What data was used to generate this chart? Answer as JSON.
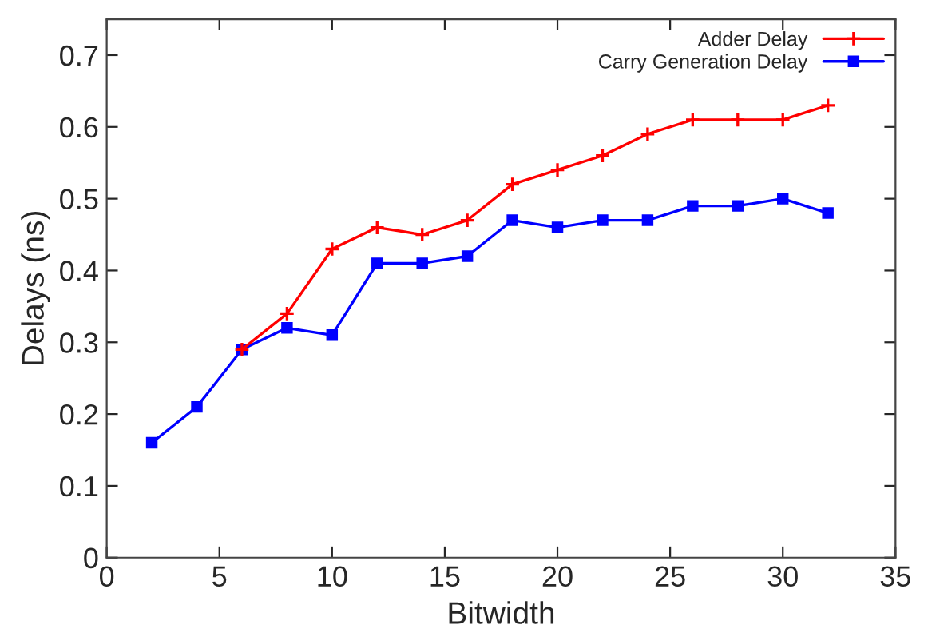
{
  "chart_data": {
    "type": "line",
    "xlabel": "Bitwidth",
    "ylabel": "Delays (ns)",
    "x": [
      2,
      4,
      6,
      8,
      10,
      12,
      14,
      16,
      18,
      20,
      22,
      24,
      26,
      28,
      30,
      32
    ],
    "series": [
      {
        "name": "Adder Delay",
        "color": "#ff0000",
        "marker": "cross",
        "values": [
          null,
          null,
          0.29,
          0.34,
          0.43,
          0.46,
          0.45,
          0.47,
          0.52,
          0.54,
          0.56,
          0.59,
          0.61,
          0.61,
          0.61,
          0.63
        ]
      },
      {
        "name": "Carry Generation Delay",
        "color": "#0000ff",
        "marker": "square",
        "values": [
          0.16,
          0.21,
          0.29,
          0.32,
          0.31,
          0.41,
          0.41,
          0.42,
          0.47,
          0.46,
          0.47,
          0.47,
          0.49,
          0.49,
          0.5,
          0.48
        ]
      }
    ],
    "xlim": [
      0,
      35
    ],
    "xticks": [
      0,
      5,
      10,
      15,
      20,
      25,
      30,
      35
    ],
    "ylim": [
      0,
      0.75
    ],
    "yticks": [
      0,
      0.1,
      0.2,
      0.3,
      0.4,
      0.5,
      0.6,
      0.7
    ],
    "grid": false,
    "legend": "top right",
    "line_style": "solid"
  }
}
